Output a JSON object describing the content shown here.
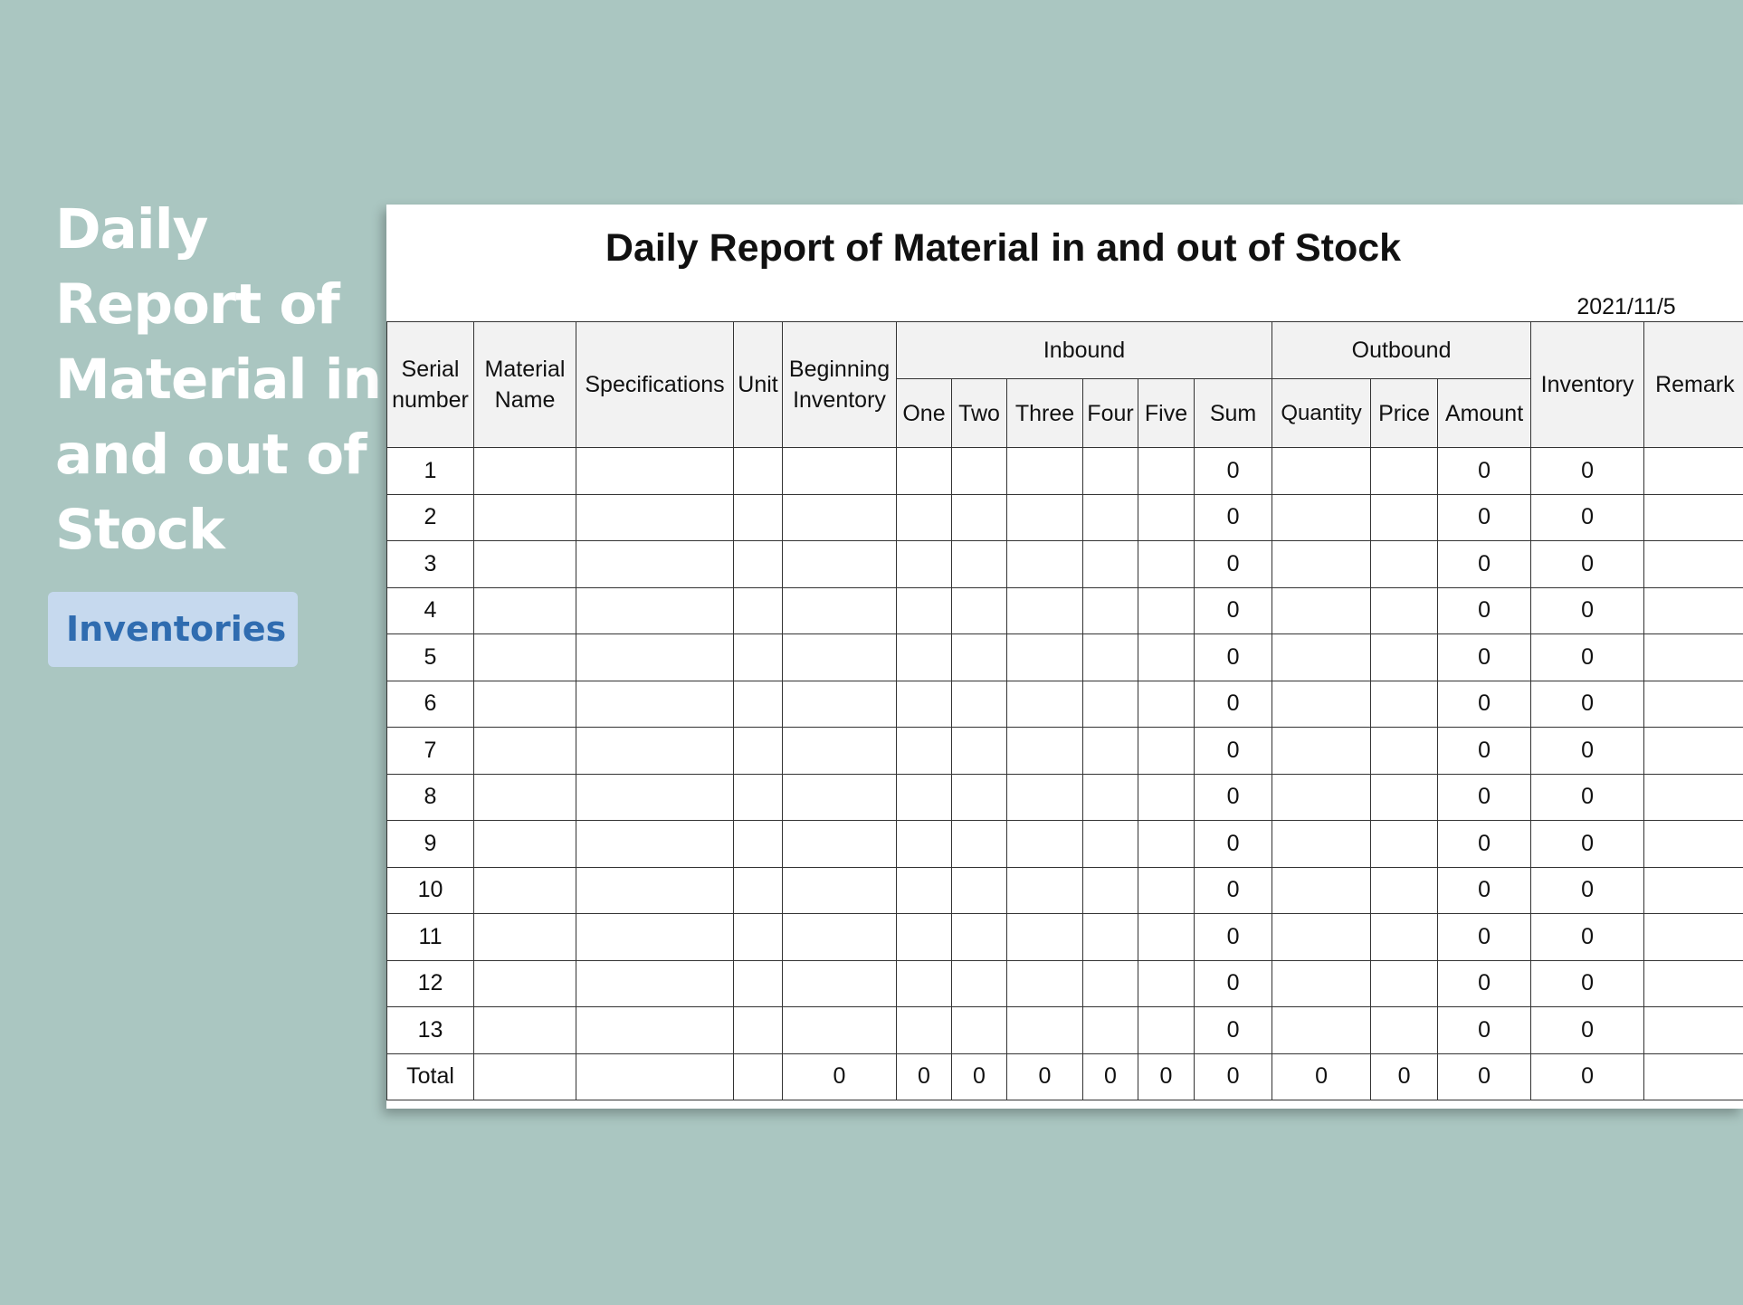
{
  "banner": {
    "title_lines": [
      "Daily",
      "Report of",
      "Material in",
      "and out of",
      "Stock"
    ],
    "tag": "Inventories"
  },
  "sheet": {
    "title": "Daily Report of Material in and out of Stock",
    "date": "2021/11/5",
    "headers": {
      "serial_number": [
        "Serial",
        "number"
      ],
      "material_name": [
        "Material",
        "Name"
      ],
      "specifications": "Specifications",
      "unit": "Unit",
      "beginning_inventory": [
        "Beginning",
        "Inventory"
      ],
      "inbound": "Inbound",
      "inbound_cols": [
        "One",
        "Two",
        "Three",
        "Four",
        "Five",
        "Sum"
      ],
      "outbound": "Outbound",
      "outbound_cols": [
        "Quantity",
        "Price",
        "Amount"
      ],
      "inventory": "Inventory",
      "remark": "Remark"
    },
    "rows": [
      {
        "serial": "1",
        "material_name": "",
        "specifications": "",
        "unit": "",
        "beginning_inventory": "",
        "one": "",
        "two": "",
        "three": "",
        "four": "",
        "five": "",
        "sum": "0",
        "quantity": "",
        "price": "",
        "amount": "0",
        "inventory": "0",
        "remark": ""
      },
      {
        "serial": "2",
        "material_name": "",
        "specifications": "",
        "unit": "",
        "beginning_inventory": "",
        "one": "",
        "two": "",
        "three": "",
        "four": "",
        "five": "",
        "sum": "0",
        "quantity": "",
        "price": "",
        "amount": "0",
        "inventory": "0",
        "remark": ""
      },
      {
        "serial": "3",
        "material_name": "",
        "specifications": "",
        "unit": "",
        "beginning_inventory": "",
        "one": "",
        "two": "",
        "three": "",
        "four": "",
        "five": "",
        "sum": "0",
        "quantity": "",
        "price": "",
        "amount": "0",
        "inventory": "0",
        "remark": ""
      },
      {
        "serial": "4",
        "material_name": "",
        "specifications": "",
        "unit": "",
        "beginning_inventory": "",
        "one": "",
        "two": "",
        "three": "",
        "four": "",
        "five": "",
        "sum": "0",
        "quantity": "",
        "price": "",
        "amount": "0",
        "inventory": "0",
        "remark": ""
      },
      {
        "serial": "5",
        "material_name": "",
        "specifications": "",
        "unit": "",
        "beginning_inventory": "",
        "one": "",
        "two": "",
        "three": "",
        "four": "",
        "five": "",
        "sum": "0",
        "quantity": "",
        "price": "",
        "amount": "0",
        "inventory": "0",
        "remark": ""
      },
      {
        "serial": "6",
        "material_name": "",
        "specifications": "",
        "unit": "",
        "beginning_inventory": "",
        "one": "",
        "two": "",
        "three": "",
        "four": "",
        "five": "",
        "sum": "0",
        "quantity": "",
        "price": "",
        "amount": "0",
        "inventory": "0",
        "remark": ""
      },
      {
        "serial": "7",
        "material_name": "",
        "specifications": "",
        "unit": "",
        "beginning_inventory": "",
        "one": "",
        "two": "",
        "three": "",
        "four": "",
        "five": "",
        "sum": "0",
        "quantity": "",
        "price": "",
        "amount": "0",
        "inventory": "0",
        "remark": ""
      },
      {
        "serial": "8",
        "material_name": "",
        "specifications": "",
        "unit": "",
        "beginning_inventory": "",
        "one": "",
        "two": "",
        "three": "",
        "four": "",
        "five": "",
        "sum": "0",
        "quantity": "",
        "price": "",
        "amount": "0",
        "inventory": "0",
        "remark": ""
      },
      {
        "serial": "9",
        "material_name": "",
        "specifications": "",
        "unit": "",
        "beginning_inventory": "",
        "one": "",
        "two": "",
        "three": "",
        "four": "",
        "five": "",
        "sum": "0",
        "quantity": "",
        "price": "",
        "amount": "0",
        "inventory": "0",
        "remark": ""
      },
      {
        "serial": "10",
        "material_name": "",
        "specifications": "",
        "unit": "",
        "beginning_inventory": "",
        "one": "",
        "two": "",
        "three": "",
        "four": "",
        "five": "",
        "sum": "0",
        "quantity": "",
        "price": "",
        "amount": "0",
        "inventory": "0",
        "remark": ""
      },
      {
        "serial": "11",
        "material_name": "",
        "specifications": "",
        "unit": "",
        "beginning_inventory": "",
        "one": "",
        "two": "",
        "three": "",
        "four": "",
        "five": "",
        "sum": "0",
        "quantity": "",
        "price": "",
        "amount": "0",
        "inventory": "0",
        "remark": ""
      },
      {
        "serial": "12",
        "material_name": "",
        "specifications": "",
        "unit": "",
        "beginning_inventory": "",
        "one": "",
        "two": "",
        "three": "",
        "four": "",
        "five": "",
        "sum": "0",
        "quantity": "",
        "price": "",
        "amount": "0",
        "inventory": "0",
        "remark": ""
      },
      {
        "serial": "13",
        "material_name": "",
        "specifications": "",
        "unit": "",
        "beginning_inventory": "",
        "one": "",
        "two": "",
        "three": "",
        "four": "",
        "five": "",
        "sum": "0",
        "quantity": "",
        "price": "",
        "amount": "0",
        "inventory": "0",
        "remark": ""
      }
    ],
    "total": {
      "serial": "Total",
      "material_name": "",
      "specifications": "",
      "unit": "",
      "beginning_inventory": "0",
      "one": "0",
      "two": "0",
      "three": "0",
      "four": "0",
      "five": "0",
      "sum": "0",
      "quantity": "0",
      "price": "0",
      "amount": "0",
      "inventory": "0",
      "remark": ""
    }
  }
}
